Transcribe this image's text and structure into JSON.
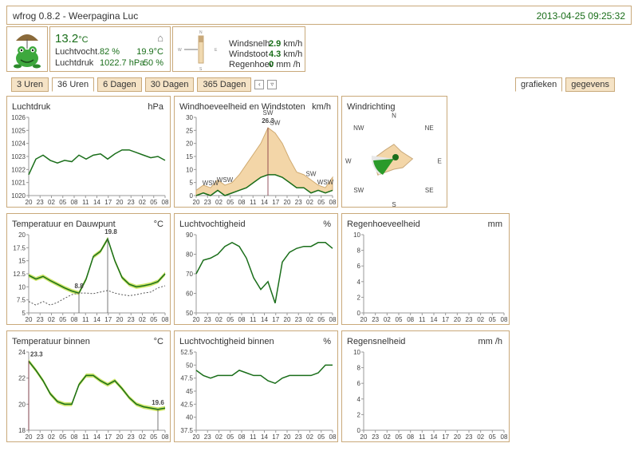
{
  "app": {
    "title": "wfrog 0.8.2 - Weerpagina Luc",
    "datetime": "2013-04-25 09:25:32"
  },
  "current": {
    "temp_out": "13.2",
    "temp_unit": "°C",
    "hum_label": "Luchtvocht.",
    "hum_value": "82 %",
    "press_label": "Luchtdruk",
    "press_value": "1022.7 hPa",
    "temp_in": "19.9°C",
    "hum_in": "50 %",
    "home_icon": "home-icon"
  },
  "wind": {
    "speed_label": "Windsnelh",
    "speed_value": "2.9",
    "speed_unit": "km/h",
    "gust_label": "Windstoot",
    "gust_value": "4.3",
    "gust_unit": "km/h",
    "rain_label": "Regenhoev",
    "rain_value": "0",
    "rain_unit": "mm /h"
  },
  "tabs": [
    "3 Uren",
    "36 Uren",
    "6 Dagen",
    "30 Dagen",
    "365 Dagen"
  ],
  "active_tab": "36 Uren",
  "view_tabs": [
    "grafieken",
    "gegevens"
  ],
  "colors": {
    "border": "#c9a97a",
    "line": "#1a6e1a",
    "fill": "#f3d6a8",
    "accent": "#c3e04c",
    "marker": "#7b2b3a"
  },
  "x_ticks": [
    "20",
    "23",
    "02",
    "05",
    "08",
    "11",
    "14",
    "17",
    "20",
    "23",
    "02",
    "05",
    "08"
  ],
  "panels": {
    "pressure": {
      "title": "Luchtdruk",
      "unit": "hPa",
      "chart_data": {
        "type": "line",
        "ylim": [
          1020,
          1026
        ],
        "yticks": [
          "1020",
          "1021",
          "1022",
          "1023",
          "1024",
          "1025",
          "1026"
        ],
        "values": [
          1021.6,
          1022.8,
          1023.1,
          1022.7,
          1022.5,
          1022.7,
          1022.6,
          1023.1,
          1022.8,
          1023.1,
          1023.2,
          1022.8,
          1023.2,
          1023.5,
          1023.5,
          1023.3,
          1023.1,
          1022.9,
          1023.0,
          1022.7
        ]
      }
    },
    "wind": {
      "title": "Windhoeveelheid en Windstoten",
      "unit": "km/h",
      "chart_data": {
        "type": "area",
        "ylim": [
          0,
          30
        ],
        "yticks": [
          "0",
          "5",
          "10",
          "15",
          "20",
          "25",
          "30"
        ],
        "speed": [
          0,
          1,
          0,
          2,
          0,
          1,
          2,
          3,
          5,
          7,
          8,
          8,
          7,
          5,
          3,
          3,
          1,
          2,
          1,
          2
        ],
        "gust": [
          2,
          4,
          3,
          6,
          4,
          5,
          8,
          12,
          16,
          20,
          26,
          24,
          20,
          14,
          9,
          8,
          6,
          4,
          3,
          7
        ],
        "max_label": "26.3",
        "dir_labels": [
          "WSW",
          "WSW",
          "SW",
          "SW",
          "SW",
          "WSW"
        ]
      }
    },
    "winddir": {
      "title": "Windrichting",
      "compass": [
        "N",
        "NE",
        "E",
        "SE",
        "S",
        "SW",
        "W",
        "NW"
      ],
      "chart_data": {
        "type": "radar",
        "values": [
          0.35,
          0.25,
          0.45,
          0.3,
          0.25,
          0.55,
          0.5,
          0.3
        ]
      }
    },
    "temp": {
      "title": "Temperatuur en Dauwpunt",
      "unit": "°C",
      "chart_data": {
        "type": "line",
        "ylim": [
          5,
          20
        ],
        "yticks": [
          "5",
          "7.5",
          "10",
          "12.5",
          "15",
          "17.5",
          "20"
        ],
        "temp": [
          12.2,
          11.5,
          12.0,
          11.2,
          10.5,
          9.8,
          9.2,
          8.8,
          11.5,
          15.8,
          16.8,
          19.2,
          15.0,
          11.8,
          10.5,
          10.0,
          10.2,
          10.5,
          11.0,
          12.5
        ],
        "dew": [
          7.2,
          6.5,
          7.2,
          6.5,
          7.0,
          7.8,
          8.5,
          8.8,
          8.8,
          8.7,
          9.0,
          9.3,
          8.8,
          8.5,
          8.3,
          8.5,
          8.8,
          9.0,
          9.8,
          10.2
        ],
        "max_label": "19.8",
        "min_label": "8.8"
      }
    },
    "humidity": {
      "title": "Luchtvochtigheid",
      "unit": "%",
      "chart_data": {
        "type": "line",
        "ylim": [
          50,
          90
        ],
        "yticks": [
          "50",
          "60",
          "70",
          "80",
          "90"
        ],
        "values": [
          70,
          77,
          78,
          80,
          84,
          86,
          84,
          78,
          68,
          62,
          66,
          55,
          76,
          81,
          83,
          84,
          84,
          86,
          86,
          83
        ]
      }
    },
    "rain": {
      "title": "Regenhoeveelheid",
      "unit": "mm",
      "chart_data": {
        "type": "bar",
        "ylim": [
          0,
          10
        ],
        "yticks": [
          "0",
          "2",
          "4",
          "6",
          "8",
          "10"
        ],
        "values": []
      }
    },
    "temp_in": {
      "title": "Temperatuur binnen",
      "unit": "°C",
      "chart_data": {
        "type": "line",
        "ylim": [
          18,
          24
        ],
        "yticks": [
          "18",
          "20",
          "22",
          "24"
        ],
        "values": [
          23.3,
          22.6,
          21.8,
          20.8,
          20.2,
          20.0,
          20.0,
          21.5,
          22.2,
          22.2,
          21.8,
          21.5,
          21.8,
          21.2,
          20.5,
          20.0,
          19.8,
          19.7,
          19.6,
          19.7
        ],
        "max_label": "23.3",
        "min_label": "19.6"
      }
    },
    "humidity_in": {
      "title": "Luchtvochtigheid binnen",
      "unit": "%",
      "chart_data": {
        "type": "line",
        "ylim": [
          37.5,
          52.5
        ],
        "yticks": [
          "37.5",
          "40",
          "42.5",
          "45",
          "47.5",
          "50",
          "52.5"
        ],
        "values": [
          49,
          48,
          47.5,
          48,
          48,
          48,
          49,
          48.5,
          48,
          48,
          47,
          46.5,
          47.5,
          48,
          48,
          48,
          48,
          48.5,
          50,
          50
        ]
      }
    },
    "rainrate": {
      "title": "Regensnelheid",
      "unit": "mm /h",
      "chart_data": {
        "type": "bar",
        "ylim": [
          0,
          10
        ],
        "yticks": [
          "0",
          "2",
          "4",
          "6",
          "8",
          "10"
        ],
        "values": []
      }
    }
  }
}
